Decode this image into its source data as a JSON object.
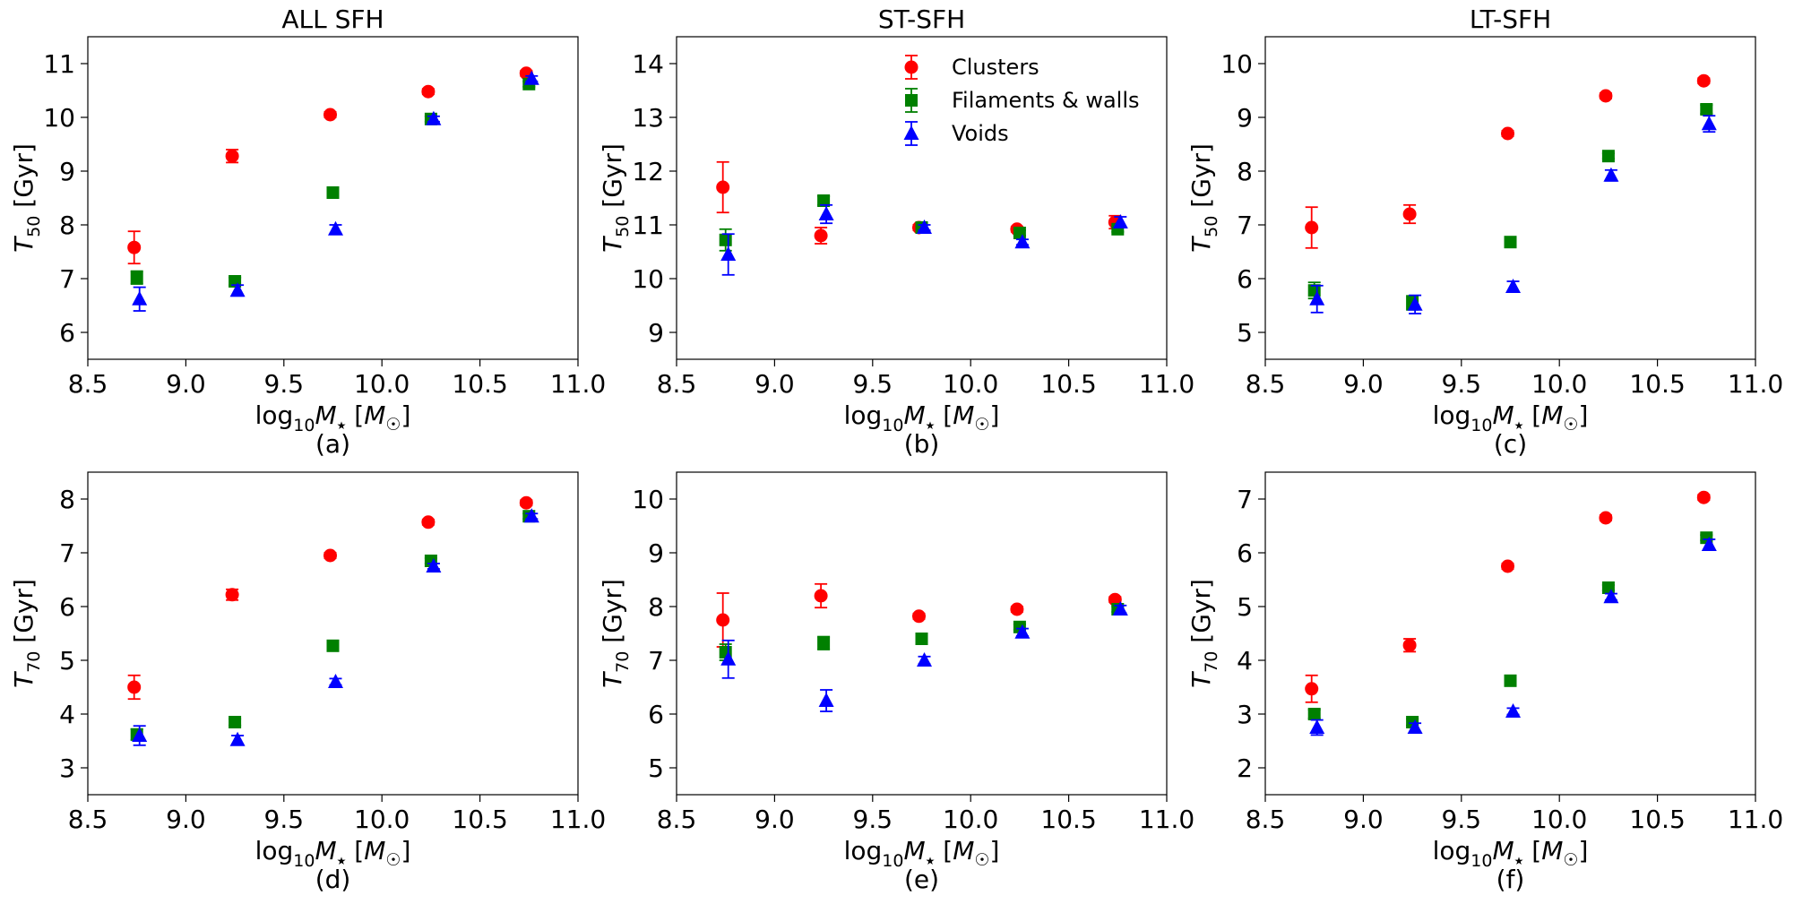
{
  "figure": {
    "legend_entries": [
      "Clusters",
      "Filaments & walls",
      "Voids"
    ],
    "series_colors": {
      "Clusters": "#ff0000",
      "Filaments & walls": "#008000",
      "Voids": "#0000ff"
    },
    "series_markers": {
      "Clusters": "circle",
      "Filaments & walls": "square",
      "Voids": "triangle"
    }
  },
  "chart_data": [
    {
      "type": "scatter",
      "panel_label": "(a)",
      "title": "ALL SFH",
      "xlabel": "log10 M★ [M☉]",
      "ylabel": "T50 [Gyr]",
      "ylabel_sub": "50",
      "xlim": [
        8.5,
        11.0
      ],
      "ylim": [
        5.5,
        11.5
      ],
      "xticks": [
        8.5,
        9.0,
        9.5,
        10.0,
        10.5,
        11.0
      ],
      "xtick_labels": [
        "8.5",
        "9.0",
        "9.5",
        "10.0",
        "10.5",
        "11.0"
      ],
      "yticks": [
        6,
        7,
        8,
        9,
        10,
        11
      ],
      "ytick_labels": [
        "6",
        "7",
        "8",
        "9",
        "10",
        "11"
      ],
      "x": [
        8.75,
        9.25,
        9.75,
        10.25,
        10.75
      ],
      "series": [
        {
          "name": "Clusters",
          "values": [
            7.58,
            9.28,
            10.05,
            10.48,
            10.82
          ],
          "errors": [
            0.3,
            0.12,
            0.05,
            0.05,
            0.05
          ]
        },
        {
          "name": "Filaments & walls",
          "values": [
            7.02,
            6.95,
            8.6,
            9.97,
            10.62
          ],
          "errors": [
            0.12,
            0.07,
            0.05,
            0.05,
            0.05
          ]
        },
        {
          "name": "Voids",
          "values": [
            6.62,
            6.78,
            7.92,
            9.97,
            10.72
          ],
          "errors": [
            0.22,
            0.1,
            0.08,
            0.05,
            0.05
          ]
        }
      ],
      "legend": false
    },
    {
      "type": "scatter",
      "panel_label": "(b)",
      "title": "ST-SFH",
      "xlabel": "log10 M★ [M☉]",
      "ylabel": "T50 [Gyr]",
      "ylabel_sub": "50",
      "xlim": [
        8.5,
        11.0
      ],
      "ylim": [
        8.5,
        14.5
      ],
      "xticks": [
        8.5,
        9.0,
        9.5,
        10.0,
        10.5,
        11.0
      ],
      "xtick_labels": [
        "8.5",
        "9.0",
        "9.5",
        "10.0",
        "10.5",
        "11.0"
      ],
      "yticks": [
        9,
        10,
        11,
        12,
        13,
        14
      ],
      "ytick_labels": [
        "9",
        "10",
        "11",
        "12",
        "13",
        "14"
      ],
      "x": [
        8.75,
        9.25,
        9.75,
        10.25,
        10.75
      ],
      "series": [
        {
          "name": "Clusters",
          "values": [
            11.7,
            10.8,
            10.95,
            10.92,
            11.05
          ],
          "errors": [
            0.47,
            0.15,
            0.05,
            0.05,
            0.12
          ]
        },
        {
          "name": "Filaments & walls",
          "values": [
            10.72,
            11.45,
            10.95,
            10.85,
            10.92
          ],
          "errors": [
            0.2,
            0.08,
            0.05,
            0.05,
            0.05
          ]
        },
        {
          "name": "Voids",
          "values": [
            10.45,
            11.2,
            10.95,
            10.68,
            11.05
          ],
          "errors": [
            0.38,
            0.17,
            0.05,
            0.05,
            0.1
          ]
        }
      ],
      "legend": true
    },
    {
      "type": "scatter",
      "panel_label": "(c)",
      "title": "LT-SFH",
      "xlabel": "log10 M★ [M☉]",
      "ylabel": "T50 [Gyr]",
      "ylabel_sub": "50",
      "xlim": [
        8.5,
        11.0
      ],
      "ylim": [
        4.5,
        10.5
      ],
      "xticks": [
        8.5,
        9.0,
        9.5,
        10.0,
        10.5,
        11.0
      ],
      "xtick_labels": [
        "8.5",
        "9.0",
        "9.5",
        "10.0",
        "10.5",
        "11.0"
      ],
      "yticks": [
        5,
        6,
        7,
        8,
        9,
        10
      ],
      "ytick_labels": [
        "5",
        "6",
        "7",
        "8",
        "9",
        "10"
      ],
      "x": [
        8.75,
        9.25,
        9.75,
        10.25,
        10.75
      ],
      "series": [
        {
          "name": "Clusters",
          "values": [
            6.95,
            7.2,
            8.7,
            9.4,
            9.68
          ],
          "errors": [
            0.38,
            0.17,
            0.05,
            0.05,
            0.05
          ]
        },
        {
          "name": "Filaments & walls",
          "values": [
            5.78,
            5.55,
            6.68,
            8.28,
            9.15
          ],
          "errors": [
            0.15,
            0.13,
            0.05,
            0.05,
            0.08
          ]
        },
        {
          "name": "Voids",
          "values": [
            5.62,
            5.52,
            5.85,
            7.92,
            8.88
          ],
          "errors": [
            0.25,
            0.17,
            0.1,
            0.1,
            0.15
          ]
        }
      ],
      "legend": false
    },
    {
      "type": "scatter",
      "panel_label": "(d)",
      "title": "",
      "xlabel": "log10 M★ [M☉]",
      "ylabel": "T70 [Gyr]",
      "ylabel_sub": "70",
      "xlim": [
        8.5,
        11.0
      ],
      "ylim": [
        2.5,
        8.5
      ],
      "xticks": [
        8.5,
        9.0,
        9.5,
        10.0,
        10.5,
        11.0
      ],
      "xtick_labels": [
        "8.5",
        "9.0",
        "9.5",
        "10.0",
        "10.5",
        "11.0"
      ],
      "yticks": [
        3,
        4,
        5,
        6,
        7,
        8
      ],
      "ytick_labels": [
        "3",
        "4",
        "5",
        "6",
        "7",
        "8"
      ],
      "x": [
        8.75,
        9.25,
        9.75,
        10.25,
        10.75
      ],
      "series": [
        {
          "name": "Clusters",
          "values": [
            4.5,
            6.22,
            6.95,
            7.57,
            7.93
          ],
          "errors": [
            0.22,
            0.1,
            0.05,
            0.05,
            0.05
          ]
        },
        {
          "name": "Filaments & walls",
          "values": [
            3.62,
            3.85,
            5.27,
            6.85,
            7.68
          ],
          "errors": [
            0.1,
            0.06,
            0.05,
            0.05,
            0.05
          ]
        },
        {
          "name": "Voids",
          "values": [
            3.6,
            3.52,
            4.6,
            6.75,
            7.68
          ],
          "errors": [
            0.18,
            0.08,
            0.06,
            0.05,
            0.05
          ]
        }
      ],
      "legend": false
    },
    {
      "type": "scatter",
      "panel_label": "(e)",
      "title": "",
      "xlabel": "log10 M★ [M☉]",
      "ylabel": "T70 [Gyr]",
      "ylabel_sub": "70",
      "xlim": [
        8.5,
        11.0
      ],
      "ylim": [
        4.5,
        10.5
      ],
      "xticks": [
        8.5,
        9.0,
        9.5,
        10.0,
        10.5,
        11.0
      ],
      "xtick_labels": [
        "8.5",
        "9.0",
        "9.5",
        "10.0",
        "10.5",
        "11.0"
      ],
      "yticks": [
        5,
        6,
        7,
        8,
        9,
        10
      ],
      "ytick_labels": [
        "5",
        "6",
        "7",
        "8",
        "9",
        "10"
      ],
      "x": [
        8.75,
        9.25,
        9.75,
        10.25,
        10.75
      ],
      "series": [
        {
          "name": "Clusters",
          "values": [
            7.75,
            8.2,
            7.82,
            7.95,
            8.13
          ],
          "errors": [
            0.5,
            0.22,
            0.05,
            0.05,
            0.05
          ]
        },
        {
          "name": "Filaments & walls",
          "values": [
            7.15,
            7.32,
            7.4,
            7.62,
            7.95
          ],
          "errors": [
            0.15,
            0.12,
            0.05,
            0.05,
            0.05
          ]
        },
        {
          "name": "Voids",
          "values": [
            7.02,
            6.25,
            7.0,
            7.52,
            7.95
          ],
          "errors": [
            0.35,
            0.2,
            0.07,
            0.07,
            0.07
          ]
        }
      ],
      "legend": false
    },
    {
      "type": "scatter",
      "panel_label": "(f)",
      "title": "",
      "xlabel": "log10 M★ [M☉]",
      "ylabel": "T70 [Gyr]",
      "ylabel_sub": "70",
      "xlim": [
        8.5,
        11.0
      ],
      "ylim": [
        1.5,
        7.5
      ],
      "xticks": [
        8.5,
        9.0,
        9.5,
        10.0,
        10.5,
        11.0
      ],
      "xtick_labels": [
        "8.5",
        "9.0",
        "9.5",
        "10.0",
        "10.5",
        "11.0"
      ],
      "yticks": [
        2,
        3,
        4,
        5,
        6,
        7
      ],
      "ytick_labels": [
        "2",
        "3",
        "4",
        "5",
        "6",
        "7"
      ],
      "x": [
        8.75,
        9.25,
        9.75,
        10.25,
        10.75
      ],
      "series": [
        {
          "name": "Clusters",
          "values": [
            3.47,
            4.28,
            5.75,
            6.65,
            7.03
          ],
          "errors": [
            0.25,
            0.12,
            0.05,
            0.05,
            0.05
          ]
        },
        {
          "name": "Filaments & walls",
          "values": [
            3.0,
            2.85,
            3.62,
            5.35,
            6.28
          ],
          "errors": [
            0.08,
            0.06,
            0.05,
            0.05,
            0.05
          ]
        },
        {
          "name": "Voids",
          "values": [
            2.75,
            2.75,
            3.05,
            5.18,
            6.15
          ],
          "errors": [
            0.14,
            0.08,
            0.06,
            0.06,
            0.1
          ]
        }
      ],
      "legend": false
    }
  ]
}
